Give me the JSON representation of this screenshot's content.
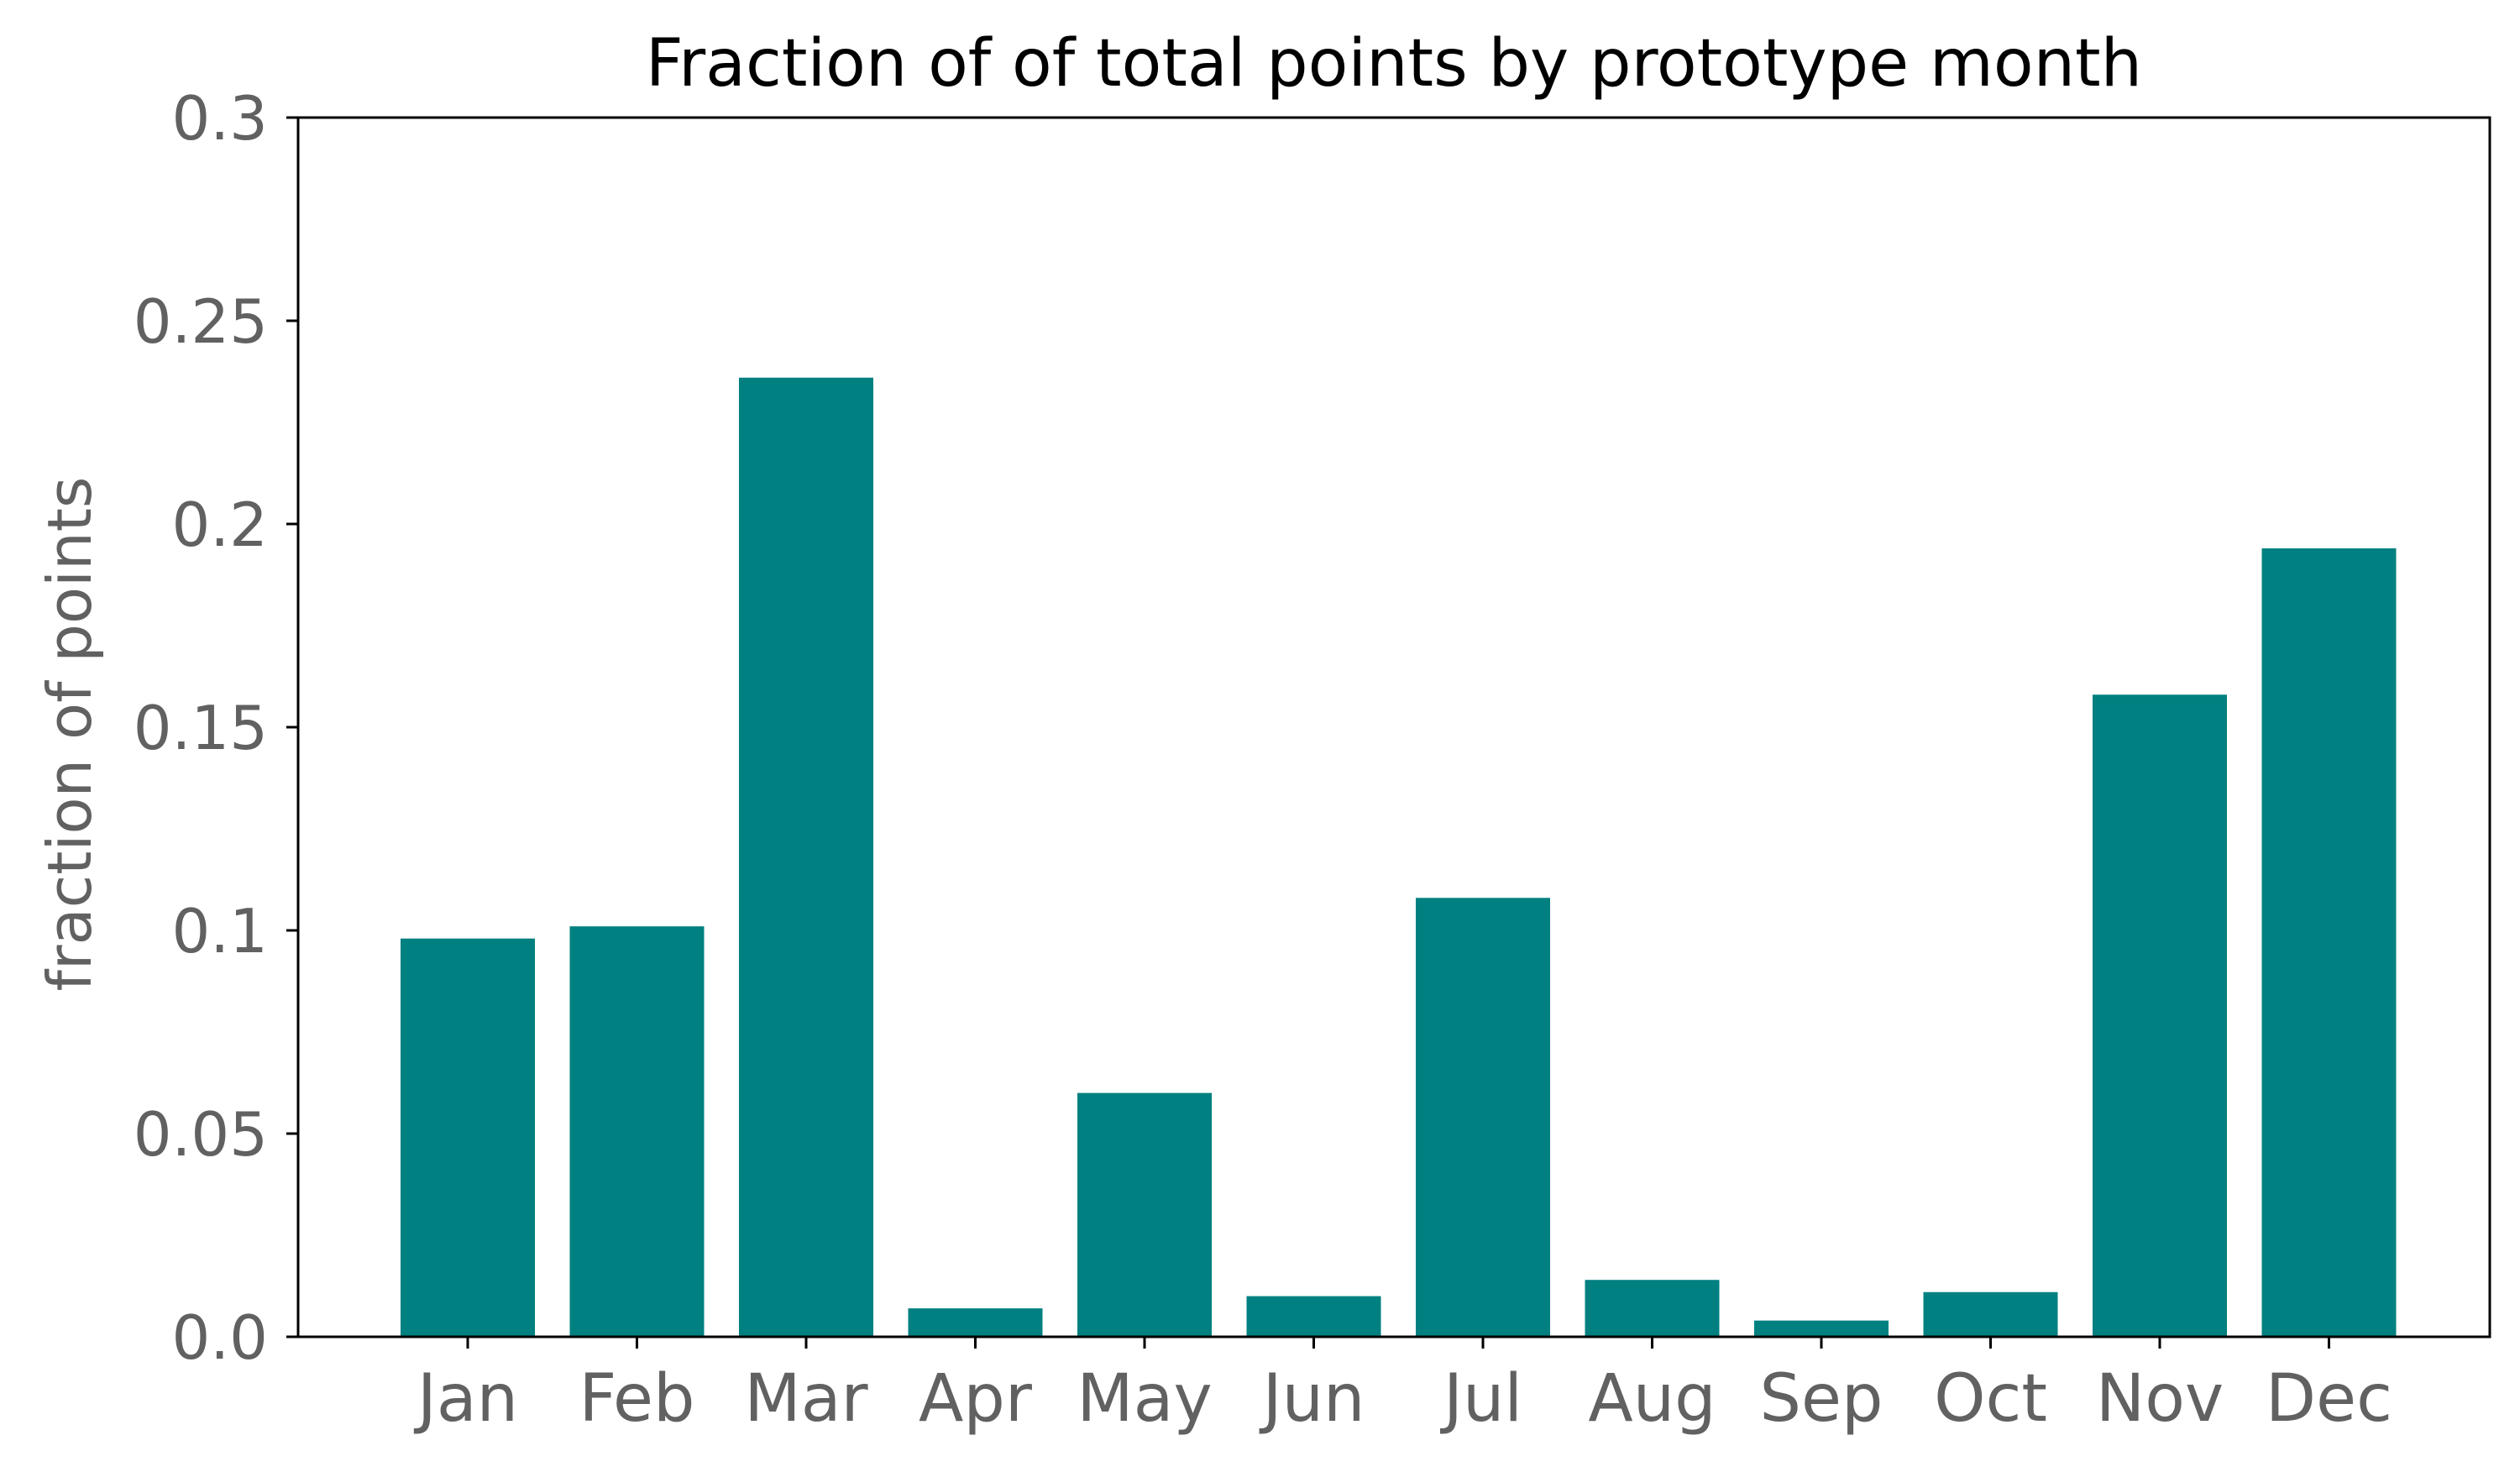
{
  "chart_data": {
    "type": "bar",
    "title": "Fraction of of total points by prototype month",
    "xlabel": "",
    "ylabel": "fraction of points",
    "categories": [
      "Jan",
      "Feb",
      "Mar",
      "Apr",
      "May",
      "Jun",
      "Jul",
      "Aug",
      "Sep",
      "Oct",
      "Nov",
      "Dec"
    ],
    "values": [
      0.098,
      0.101,
      0.236,
      0.007,
      0.06,
      0.01,
      0.108,
      0.014,
      0.004,
      0.011,
      0.158,
      0.194
    ],
    "ylim": [
      0,
      0.3
    ],
    "yticks": [
      0.0,
      0.05,
      0.1,
      0.15,
      0.2,
      0.25,
      0.3
    ],
    "ytick_labels": [
      "0.0",
      "0.05",
      "0.1",
      "0.15",
      "0.2",
      "0.25",
      "0.3"
    ],
    "bar_color": "#008080",
    "grid": false,
    "legend": "none"
  }
}
